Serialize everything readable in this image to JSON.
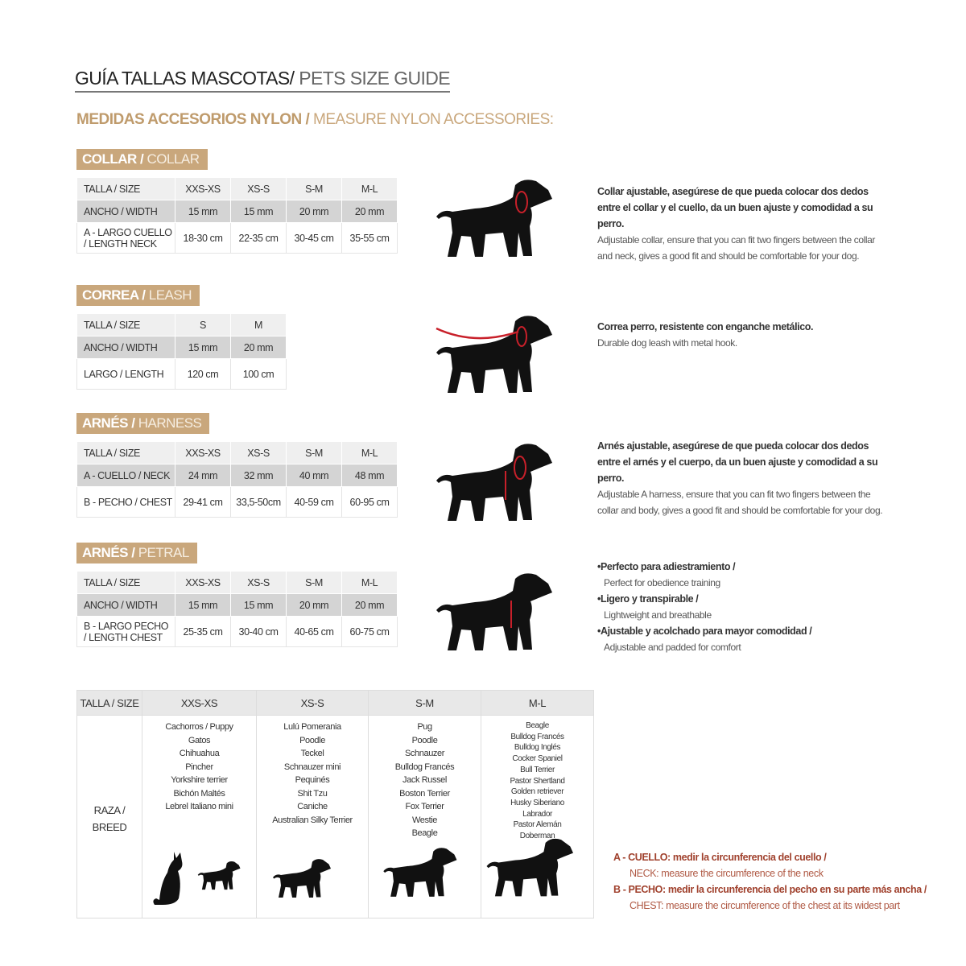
{
  "header": {
    "title_es": "GUÍA TALLAS MASCOTAS/",
    "title_en": "PETS SIZE GUIDE",
    "subtitle_es": "MEDIDAS ACCESORIOS NYLON /",
    "subtitle_en": "MEASURE NYLON ACCESSORIES:"
  },
  "sections": [
    {
      "label_es": "COLLAR /",
      "label_en": "COLLAR",
      "table": {
        "rows": [
          [
            "TALLA / SIZE",
            "XXS-XS",
            "XS-S",
            "S-M",
            "M-L"
          ],
          [
            "ANCHO / WIDTH",
            "15 mm",
            "15 mm",
            "20 mm",
            "20 mm"
          ],
          [
            "A - LARGO CUELLO / LENGTH NECK",
            "18-30 cm",
            "22-35 cm",
            "30-45 cm",
            "35-55 cm"
          ]
        ]
      },
      "description": {
        "es": "Collar ajustable, asegúrese de que pueda colocar dos dedos entre el collar y el cuello, da un buen ajuste y comodidad a su perro.",
        "en": "Adjustable collar, ensure that you can fit two fingers between the collar and neck, gives a good fit and should be comfortable for your dog."
      }
    },
    {
      "label_es": "CORREA /",
      "label_en": "LEASH",
      "table": {
        "rows": [
          [
            "TALLA / SIZE",
            "S",
            "M"
          ],
          [
            "ANCHO / WIDTH",
            "15 mm",
            "20 mm"
          ],
          [
            "LARGO / LENGTH",
            "120 cm",
            "100 cm"
          ]
        ]
      },
      "description": {
        "es": "Correa perro, resistente con enganche metálico.",
        "en": "Durable dog leash with metal hook."
      }
    },
    {
      "label_es": "ARNÉS /",
      "label_en": "HARNESS",
      "table": {
        "rows": [
          [
            "TALLA / SIZE",
            "XXS-XS",
            "XS-S",
            "S-M",
            "M-L"
          ],
          [
            "A - CUELLO / NECK",
            "24 mm",
            "32 mm",
            "40 mm",
            "48 mm"
          ],
          [
            "B - PECHO / CHEST",
            "29-41 cm",
            "33,5-50cm",
            "40-59 cm",
            "60-95 cm"
          ]
        ]
      },
      "description": {
        "es": "Arnés ajustable, asegúrese de que pueda colocar dos dedos entre el arnés y el cuerpo, da un buen ajuste y comodidad a su perro.",
        "en": "Adjustable A harness, ensure that you can fit two fingers between the collar and body, gives a good fit and should be comfortable for your dog."
      }
    },
    {
      "label_es": "ARNÉS /",
      "label_en": "PETRAL",
      "table": {
        "rows": [
          [
            "TALLA / SIZE",
            "XXS-XS",
            "XS-S",
            "S-M",
            "M-L"
          ],
          [
            "ANCHO / WIDTH",
            "15 mm",
            "15 mm",
            "20 mm",
            "20 mm"
          ],
          [
            "B - LARGO PECHO / LENGTH CHEST",
            "25-35 cm",
            "30-40 cm",
            "40-65 cm",
            "60-75 cm"
          ]
        ]
      },
      "bullets": [
        {
          "es": "Perfecto para adiestramiento /",
          "en": "Perfect for obedience training"
        },
        {
          "es": "Ligero y transpirable /",
          "en": "Lightweight and breathable"
        },
        {
          "es": "Ajustable y acolchado para mayor comodidad /",
          "en": "Adjustable and padded for comfort"
        }
      ]
    }
  ],
  "breeds": {
    "header": [
      "TALLA /  SIZE",
      "XXS-XS",
      "XS-S",
      "S-M",
      "M-L"
    ],
    "row_label": "RAZA / BREED",
    "columns": [
      [
        "Cachorros / Puppy",
        "Gatos",
        "Chihuahua",
        "Pincher",
        "Yorkshire terrier",
        "Bichón Maltés",
        "Lebrel Italiano mini"
      ],
      [
        "Lulú Pomerania",
        "Poodle",
        "Teckel",
        "Schnauzer mini",
        "Pequinés",
        "Shit Tzu",
        "Caniche",
        "Australian Silky Terrier"
      ],
      [
        "Pug",
        "Poodle",
        "Schnauzer",
        "Bulldog Francés",
        "Jack Russel",
        "Boston Terrier",
        "Fox Terrier",
        "Westie",
        "Beagle"
      ],
      [
        "Beagle",
        "Bulldog Francés",
        "Bulldog Inglés",
        "Cocker Spaniel",
        "Bull Terrier",
        "Pastor Shertland",
        "Golden retriever",
        "Husky Siberiano",
        "Labrador",
        "Pastor Alemán",
        "Doberman"
      ]
    ]
  },
  "notes": [
    {
      "es": "A - CUELLO: medir la circunferencia del cuello /",
      "en": "NECK: measure the circumference of the neck"
    },
    {
      "es": "B - PECHO: medir la circunferencia del pecho en su parte más ancha /",
      "en": "CHEST: measure the circumference of the chest at its widest part"
    }
  ]
}
